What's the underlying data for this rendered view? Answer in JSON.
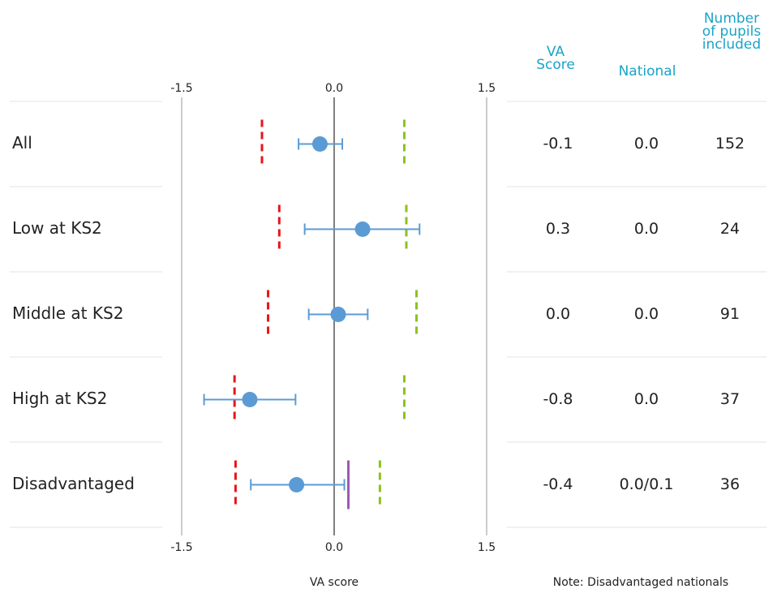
{
  "chart_data": {
    "type": "forest",
    "categories": [
      "All",
      "Low at KS2",
      "Middle at KS2",
      "High at KS2",
      "Disadvantaged"
    ],
    "values": [
      -0.14,
      0.28,
      0.04,
      -0.83,
      -0.37
    ],
    "ci_low": [
      -0.35,
      -0.29,
      -0.25,
      -1.28,
      -0.82
    ],
    "ci_high": [
      0.08,
      0.84,
      0.33,
      -0.38,
      0.1
    ],
    "lower": [
      -0.71,
      -0.54,
      -0.65,
      -0.98,
      -0.97
    ],
    "upper": [
      0.69,
      0.71,
      0.81,
      0.69,
      0.45
    ],
    "national": [
      null,
      null,
      null,
      null,
      0.14
    ],
    "colors": {
      "point": "#5b9bd5",
      "lower": "#e8151b",
      "upper": "#8cc21f",
      "national": "#9b59b6"
    },
    "xlim": [
      -1.5,
      1.5
    ],
    "xticks": [
      -1.5,
      {
        "value": 0,
        "label": "0.0"
      },
      1.5
    ],
    "xlabel": "VA score",
    "table": {
      "headers": [
        "VA Score",
        "National",
        "Number of pupils included"
      ],
      "rows": [
        [
          "-0.1",
          "0.0",
          "152"
        ],
        [
          "0.3",
          "0.0",
          "24"
        ],
        [
          "0.0",
          "0.0",
          "91"
        ],
        [
          "-0.8",
          "0.0",
          "37"
        ],
        [
          "-0.4",
          "0.0/0.1",
          "36"
        ]
      ]
    },
    "note": "Note: Disadvantaged nationals"
  }
}
